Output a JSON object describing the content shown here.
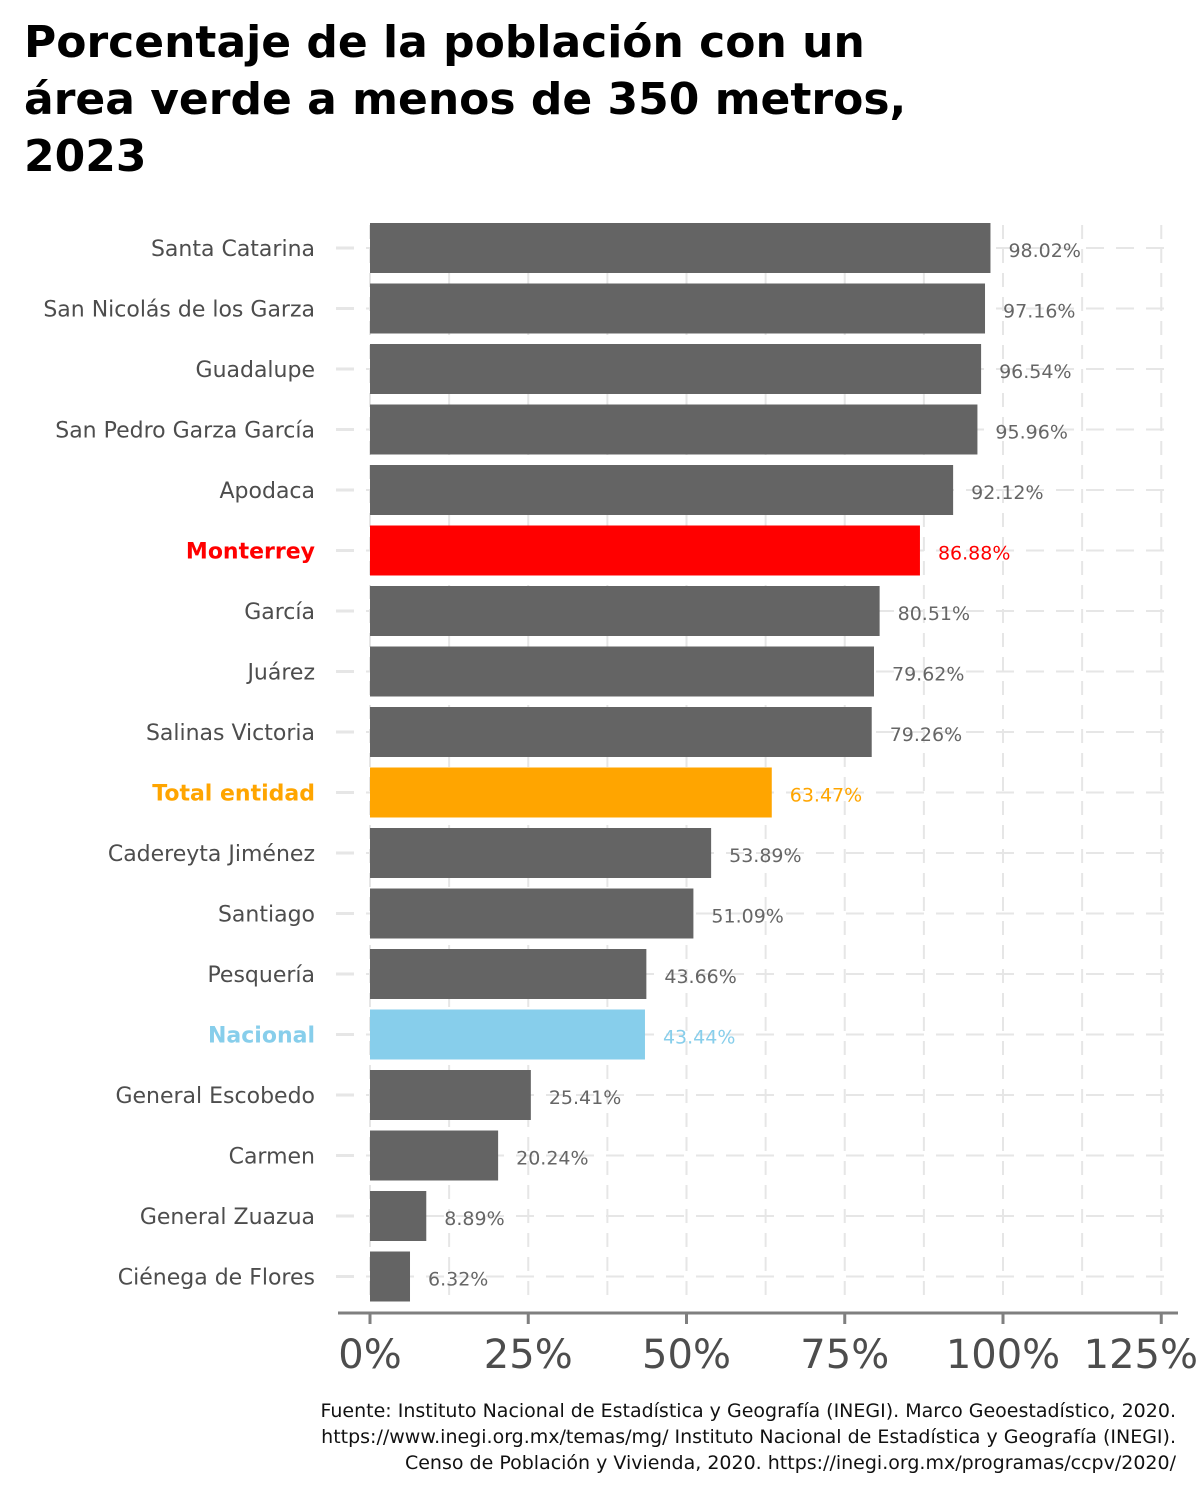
{
  "title_lines": [
    "Porcentaje de la población con un",
    "área verde a menos de 350 metros,",
    "2023"
  ],
  "caption_lines": [
    "Fuente: Instituto Nacional de Estadística y Geografía (INEGI). Marco Geoestadístico, 2020.",
    "https://www.inegi.org.mx/temas/mg/ Instituto Nacional de Estadística y Geografía (INEGI).",
    "Censo de Población y Vivienda, 2020. https://inegi.org.mx/programas/ccpv/2020/"
  ],
  "colors": {
    "default": "#646464",
    "highlight_city": "#ff0000",
    "state_total": "#ffa500",
    "national": "#87ceeb",
    "grid": "#e6e6e6",
    "axis": "#7f7f7f"
  },
  "chart_data": {
    "type": "bar",
    "orientation": "horizontal",
    "xlim": [
      0,
      125
    ],
    "x_ticks": [
      0,
      25,
      50,
      75,
      100,
      125
    ],
    "x_tick_labels": [
      "0%",
      "25%",
      "50%",
      "75%",
      "100%",
      "125%"
    ],
    "grid": true,
    "categories": [
      "Santa Catarina",
      "San Nicolás de los Garza",
      "Guadalupe",
      "San Pedro Garza García",
      "Apodaca",
      "Monterrey",
      "García",
      "Juárez",
      "Salinas Victoria",
      "Total entidad",
      "Cadereyta Jiménez",
      "Santiago",
      "Pesquería",
      "Nacional",
      "General Escobedo",
      "Carmen",
      "General Zuazua",
      "Ciénega de Flores"
    ],
    "values": [
      98.02,
      97.16,
      96.54,
      95.96,
      92.12,
      86.88,
      80.51,
      79.62,
      79.26,
      63.47,
      53.89,
      51.09,
      43.66,
      43.44,
      25.41,
      20.24,
      8.89,
      6.32
    ],
    "value_labels": [
      "98.02%",
      "97.16%",
      "96.54%",
      "95.96%",
      "92.12%",
      "86.88%",
      "80.51%",
      "79.62%",
      "79.26%",
      "63.47%",
      "53.89%",
      "51.09%",
      "43.66%",
      "43.44%",
      "25.41%",
      "20.24%",
      "8.89%",
      "6.32%"
    ],
    "highlights": {
      "Monterrey": "highlight_city",
      "Total entidad": "state_total",
      "Nacional": "national"
    }
  }
}
